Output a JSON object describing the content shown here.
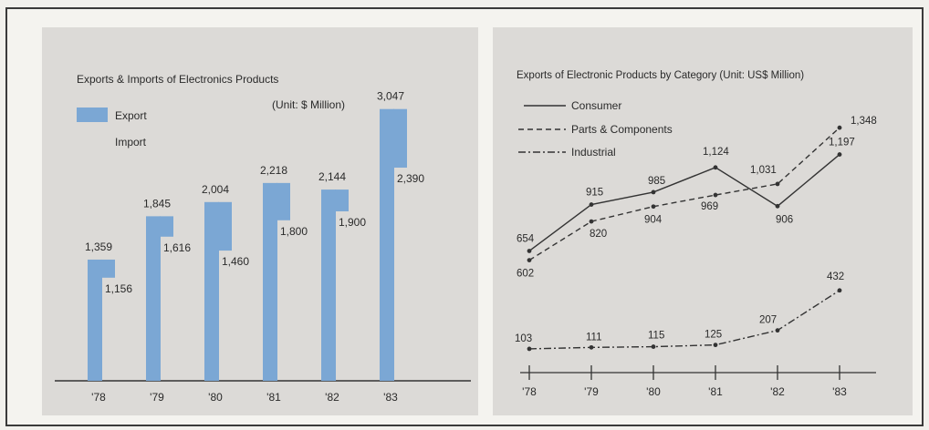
{
  "chart_data": [
    {
      "type": "bar",
      "title": "Exports & Imports of Electronics Products",
      "unit_note": "(Unit: $ Million)",
      "categories": [
        "'78",
        "'79",
        "'80",
        "'81",
        "'82",
        "'83"
      ],
      "series": [
        {
          "name": "Export",
          "values": [
            1359,
            1845,
            2004,
            2218,
            2144,
            3047
          ],
          "labels": [
            "1,359",
            "1,845",
            "2,004",
            "2,218",
            "2,144",
            "3,047"
          ]
        },
        {
          "name": "Import",
          "values": [
            1156,
            1616,
            1460,
            1800,
            1900,
            2390
          ],
          "labels": [
            "1,156",
            "1,616",
            "1,460",
            "1,800",
            "1,900",
            "2,390"
          ]
        }
      ],
      "colors": {
        "export": "#7ba7d4",
        "import": "#dcdad7"
      }
    },
    {
      "type": "line",
      "title": "Exports of Electronic Products by Category (Unit: US$ Million)",
      "x": [
        "'78",
        "'79",
        "'80",
        "'81",
        "'82",
        "'83"
      ],
      "series": [
        {
          "name": "Consumer",
          "style": "solid",
          "values": [
            654,
            915,
            985,
            1124,
            906,
            1197
          ],
          "labels": [
            "654",
            "915",
            "985",
            "1,124",
            "906",
            "1,197"
          ]
        },
        {
          "name": "Parts & Components",
          "style": "dashed",
          "values": [
            602,
            820,
            904,
            969,
            1031,
            1348
          ],
          "labels": [
            "602",
            "820",
            "904",
            "969",
            "1,031",
            "1,348"
          ]
        },
        {
          "name": "Industrial",
          "style": "dash-dot",
          "values": [
            103,
            111,
            115,
            125,
            207,
            432
          ],
          "labels": [
            "103",
            "111",
            "115",
            "125",
            "207",
            "432"
          ]
        }
      ]
    }
  ]
}
